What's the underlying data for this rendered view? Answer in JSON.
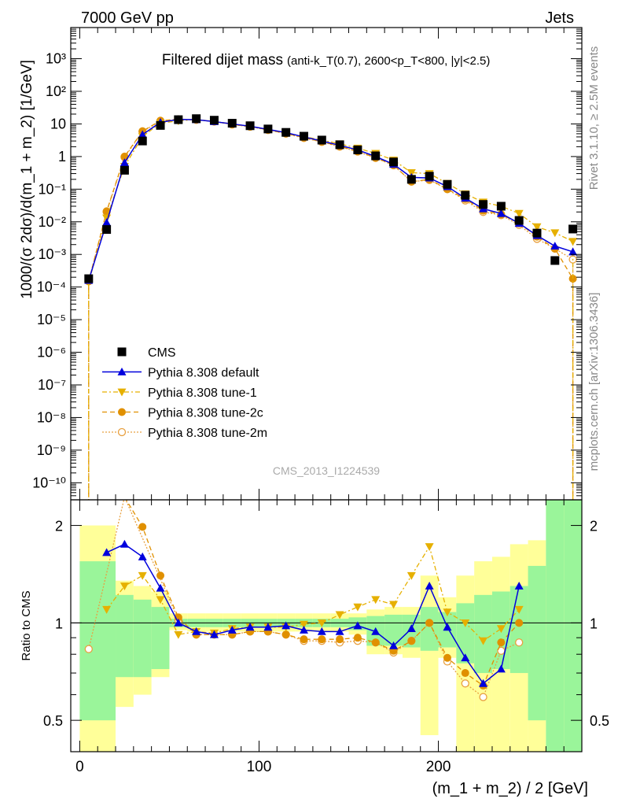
{
  "header": {
    "left": "7000 GeV pp",
    "right": "Jets"
  },
  "side_labels": {
    "rivet": "Rivet 3.1.10, ≥ 2.5M events",
    "site": "mcplots.cern.ch [arXiv:1306.3436]"
  },
  "chart_data": [
    {
      "type": "scatter",
      "title": "Filtered dijet mass",
      "subtitle": "(anti-k_T(0.7), 2600<p_T<800, |y|<2.5)",
      "xlabel": "(m_1 + m_2) / 2 [GeV]",
      "ylabel": "1000/(σ 2dσ)/d(m_1 + m_2) [1/GeV]",
      "watermark": "CMS_2013_I1224539",
      "yscale": "log",
      "xlim": [
        -5,
        280
      ],
      "ylim": [
        3e-11,
        9000
      ],
      "legend_position": "lower-left",
      "colors": {
        "CMS": "#000000",
        "default": "#0000dd",
        "tune1": "#e6b000",
        "tune2c": "#e09000",
        "tune2m": "#e8a040"
      },
      "series": [
        {
          "name": "CMS",
          "marker": "square",
          "x": [
            5,
            15,
            25,
            35,
            45,
            55,
            65,
            75,
            85,
            95,
            105,
            115,
            125,
            135,
            145,
            155,
            165,
            175,
            185,
            195,
            205,
            215,
            225,
            235,
            245,
            255,
            265,
            275
          ],
          "y": [
            0.00018,
            0.0058,
            0.38,
            3.0,
            9.0,
            13.5,
            14.5,
            13.0,
            10.5,
            8.8,
            7.0,
            5.5,
            4.2,
            3.2,
            2.3,
            1.6,
            1.05,
            0.68,
            0.2,
            0.25,
            0.14,
            0.065,
            0.034,
            0.03,
            0.011,
            0.0045,
            0.00065,
            0.006
          ]
        },
        {
          "name": "Pythia 8.308 default",
          "marker": "triangle-up",
          "x": [
            5,
            15,
            25,
            35,
            45,
            55,
            65,
            75,
            85,
            95,
            105,
            115,
            125,
            135,
            145,
            155,
            165,
            175,
            185,
            195,
            205,
            215,
            225,
            235,
            245,
            255,
            265,
            275
          ],
          "y": [
            0.00016,
            0.0095,
            0.65,
            4.7,
            11.2,
            13.7,
            13.5,
            11.8,
            10.0,
            8.5,
            6.8,
            5.4,
            4.0,
            3.0,
            2.2,
            1.6,
            1.0,
            0.58,
            0.23,
            0.22,
            0.12,
            0.053,
            0.025,
            0.018,
            0.009,
            0.0038,
            0.0018,
            0.0012
          ]
        },
        {
          "name": "Pythia 8.308 tune-1",
          "marker": "triangle-down",
          "x": [
            5,
            15,
            25,
            35,
            45,
            55,
            65,
            75,
            85,
            95,
            105,
            115,
            125,
            135,
            145,
            155,
            165,
            175,
            185,
            195,
            205,
            215,
            225,
            235,
            245,
            255,
            265,
            275
          ],
          "y": [
            0.00014,
            0.013,
            0.5,
            4.1,
            10.6,
            12.4,
            13.6,
            12.0,
            10.0,
            8.4,
            6.8,
            5.3,
            4.1,
            3.2,
            2.45,
            1.8,
            1.25,
            0.78,
            0.32,
            0.3,
            0.15,
            0.072,
            0.04,
            0.03,
            0.018,
            0.007,
            0.0046,
            0.0025
          ]
        },
        {
          "name": "Pythia 8.308 tune-2c",
          "marker": "circle",
          "x": [
            5,
            15,
            25,
            35,
            45,
            55,
            65,
            75,
            85,
            95,
            105,
            115,
            125,
            135,
            145,
            155,
            165,
            175,
            185,
            195,
            205,
            215,
            225,
            235,
            245,
            255,
            265,
            275
          ],
          "y": [
            0.00015,
            0.021,
            1.0,
            6.0,
            12.6,
            14.0,
            13.4,
            11.9,
            9.7,
            8.3,
            6.6,
            5.1,
            3.8,
            2.85,
            2.05,
            1.45,
            0.92,
            0.55,
            0.17,
            0.2,
            0.1,
            0.05,
            0.022,
            0.017,
            0.009,
            0.0035,
            0.0015,
            0.00018
          ]
        },
        {
          "name": "Pythia 8.308 tune-2m",
          "marker": "circle-open",
          "x": [
            5,
            15,
            25,
            35,
            45,
            55,
            65,
            75,
            85,
            95,
            105,
            115,
            125,
            135,
            145,
            155,
            165,
            175,
            185,
            195,
            205,
            215,
            225,
            235,
            245,
            255,
            265,
            275
          ],
          "y": [
            0.00015,
            0.02,
            0.95,
            5.8,
            12.2,
            13.8,
            13.3,
            11.8,
            9.6,
            8.2,
            6.5,
            5.0,
            3.7,
            2.8,
            2.0,
            1.42,
            0.9,
            0.54,
            0.17,
            0.19,
            0.1,
            0.045,
            0.02,
            0.016,
            0.008,
            0.003,
            0.0015,
            0.0007
          ]
        }
      ]
    },
    {
      "type": "line",
      "ylabel": "Ratio to CMS",
      "xlabel": "(m_1 + m_2) / 2 [GeV]",
      "xlim": [
        -5,
        280
      ],
      "ylim": [
        0.4,
        2.4
      ],
      "yscale": "log",
      "reference_line": 1,
      "bands": {
        "inner_color": "#9af59a",
        "outer_color": "#ffff99",
        "x_low": [
          0,
          20,
          30,
          40,
          50,
          60,
          70,
          80,
          90,
          100,
          110,
          120,
          130,
          140,
          150,
          160,
          170,
          180,
          190,
          200,
          210,
          220,
          230,
          240,
          250,
          260,
          270
        ],
        "x_high": [
          20,
          30,
          40,
          50,
          60,
          70,
          80,
          90,
          100,
          110,
          120,
          130,
          140,
          150,
          160,
          170,
          180,
          190,
          200,
          210,
          220,
          230,
          240,
          250,
          260,
          270,
          280
        ],
        "outer_low": [
          0.4,
          0.55,
          0.6,
          0.68,
          0.95,
          0.94,
          0.94,
          0.94,
          0.94,
          0.94,
          0.94,
          0.94,
          0.94,
          0.94,
          0.92,
          0.8,
          0.8,
          0.78,
          0.45,
          0.78,
          0.4,
          0.4,
          0.4,
          0.4,
          0.4,
          0.4,
          0.4
        ],
        "outer_high": [
          2.0,
          1.35,
          1.3,
          1.25,
          1.07,
          1.07,
          1.07,
          1.07,
          1.07,
          1.07,
          1.07,
          1.07,
          1.07,
          1.07,
          1.07,
          1.1,
          1.12,
          1.12,
          1.4,
          1.2,
          1.4,
          1.55,
          1.6,
          1.75,
          1.8,
          2.4,
          2.4
        ],
        "inner_low": [
          0.5,
          0.68,
          0.68,
          0.72,
          0.97,
          0.97,
          0.97,
          0.97,
          0.97,
          0.97,
          0.97,
          0.97,
          0.97,
          0.97,
          0.95,
          0.85,
          0.85,
          0.84,
          0.82,
          0.84,
          0.75,
          0.7,
          0.72,
          0.7,
          0.5,
          0.4,
          0.4
        ],
        "inner_high": [
          1.55,
          1.22,
          1.18,
          1.12,
          1.03,
          1.03,
          1.03,
          1.03,
          1.03,
          1.03,
          1.03,
          1.03,
          1.03,
          1.03,
          1.04,
          1.05,
          1.06,
          1.06,
          1.12,
          1.08,
          1.15,
          1.22,
          1.25,
          1.3,
          1.5,
          2.4,
          2.4
        ]
      },
      "series": [
        {
          "name": "Pythia 8.308 default",
          "marker": "triangle-up",
          "x": [
            15,
            25,
            35,
            45,
            55,
            65,
            75,
            85,
            95,
            105,
            115,
            125,
            135,
            145,
            155,
            165,
            175,
            185,
            195,
            205,
            215,
            225,
            235,
            245
          ],
          "y": [
            1.65,
            1.75,
            1.6,
            1.28,
            1.0,
            0.94,
            0.92,
            0.95,
            0.97,
            0.97,
            0.98,
            0.95,
            0.94,
            0.94,
            0.98,
            0.94,
            0.85,
            0.96,
            1.3,
            0.97,
            0.78,
            0.65,
            0.72,
            1.3
          ]
        },
        {
          "name": "Pythia 8.308 tune-1",
          "marker": "triangle-down",
          "x": [
            15,
            25,
            35,
            45,
            55,
            65,
            75,
            85,
            95,
            105,
            115,
            125,
            135,
            145,
            155,
            165,
            175,
            185,
            195,
            205,
            215,
            225,
            235,
            245
          ],
          "y": [
            1.1,
            1.3,
            1.4,
            1.18,
            0.92,
            0.94,
            0.93,
            0.96,
            0.97,
            0.97,
            0.97,
            0.99,
            1.0,
            1.06,
            1.12,
            1.18,
            1.14,
            1.4,
            1.72,
            1.08,
            1.0,
            0.88,
            0.96,
            1.1
          ]
        },
        {
          "name": "Pythia 8.308 tune-2c",
          "marker": "circle",
          "x": [
            25,
            35,
            45,
            55,
            65,
            75,
            85,
            95,
            105,
            115,
            125,
            135,
            145,
            155,
            165,
            175,
            185,
            195,
            205,
            215,
            225,
            235,
            245
          ],
          "y": [
            2.6,
            1.98,
            1.4,
            1.04,
            0.92,
            0.92,
            0.92,
            0.94,
            0.94,
            0.92,
            0.89,
            0.89,
            0.89,
            0.9,
            0.87,
            0.82,
            0.88,
            1.0,
            0.78,
            0.7,
            0.64,
            0.87,
            1.0
          ]
        },
        {
          "name": "Pythia 8.308 tune-2m",
          "marker": "circle-open",
          "x": [
            5,
            25,
            55,
            65,
            75,
            85,
            95,
            105,
            115,
            125,
            135,
            145,
            155,
            165,
            175,
            185,
            195,
            205,
            215,
            225,
            235,
            245
          ],
          "y": [
            0.83,
            2.5,
            1.02,
            0.92,
            0.92,
            0.92,
            0.94,
            0.94,
            0.92,
            0.88,
            0.88,
            0.87,
            0.88,
            0.87,
            0.81,
            0.88,
            1.0,
            0.76,
            0.65,
            0.59,
            0.82,
            0.87
          ]
        }
      ],
      "ytick_labels": [
        "0.5",
        "1",
        "2"
      ],
      "xtick_labels": [
        "0",
        "100",
        "200"
      ]
    }
  ],
  "legend": [
    {
      "label": "CMS",
      "marker": "square"
    },
    {
      "label": "Pythia 8.308 default",
      "marker": "triangle-up"
    },
    {
      "label": "Pythia 8.308 tune-1",
      "marker": "triangle-down"
    },
    {
      "label": "Pythia 8.308 tune-2c",
      "marker": "circle"
    },
    {
      "label": "Pythia 8.308 tune-2m",
      "marker": "circle-open"
    }
  ]
}
